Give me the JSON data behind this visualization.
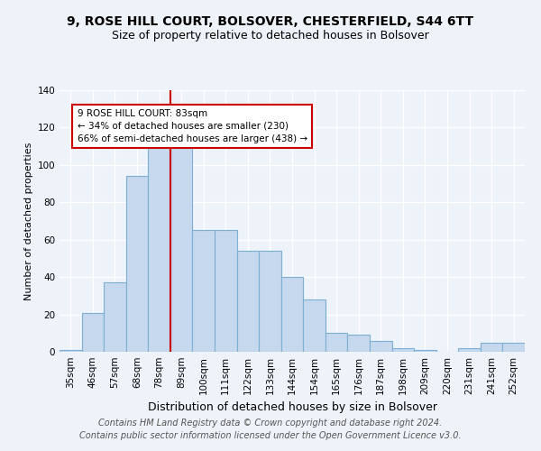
{
  "title": "9, ROSE HILL COURT, BOLSOVER, CHESTERFIELD, S44 6TT",
  "subtitle": "Size of property relative to detached houses in Bolsover",
  "xlabel": "Distribution of detached houses by size in Bolsover",
  "ylabel": "Number of detached properties",
  "footnote": "Contains HM Land Registry data © Crown copyright and database right 2024.\nContains public sector information licensed under the Open Government Licence v3.0.",
  "bar_labels": [
    "35sqm",
    "46sqm",
    "57sqm",
    "68sqm",
    "78sqm",
    "89sqm",
    "100sqm",
    "111sqm",
    "122sqm",
    "133sqm",
    "144sqm",
    "154sqm",
    "165sqm",
    "176sqm",
    "187sqm",
    "198sqm",
    "209sqm",
    "220sqm",
    "231sqm",
    "241sqm",
    "252sqm"
  ],
  "bar_values": [
    1,
    21,
    37,
    94,
    118,
    113,
    65,
    65,
    54,
    54,
    40,
    28,
    10,
    9,
    6,
    2,
    1,
    0,
    2,
    5,
    5
  ],
  "bar_color": "#c5d8ed",
  "bar_edge_color": "#7bafd4",
  "red_line_index": 5,
  "annotation_text": "9 ROSE HILL COURT: 83sqm\n← 34% of detached houses are smaller (230)\n66% of semi-detached houses are larger (438) →",
  "annotation_box_color": "#ffffff",
  "annotation_box_edge_color": "#cc0000",
  "red_line_color": "#cc0000",
  "ylim": [
    0,
    140
  ],
  "yticks": [
    0,
    20,
    40,
    60,
    80,
    100,
    120,
    140
  ],
  "background_color": "#eef2f9",
  "grid_color": "#ffffff",
  "title_fontsize": 10,
  "subtitle_fontsize": 9,
  "xlabel_fontsize": 9,
  "ylabel_fontsize": 8,
  "tick_fontsize": 7.5,
  "footnote_fontsize": 7
}
